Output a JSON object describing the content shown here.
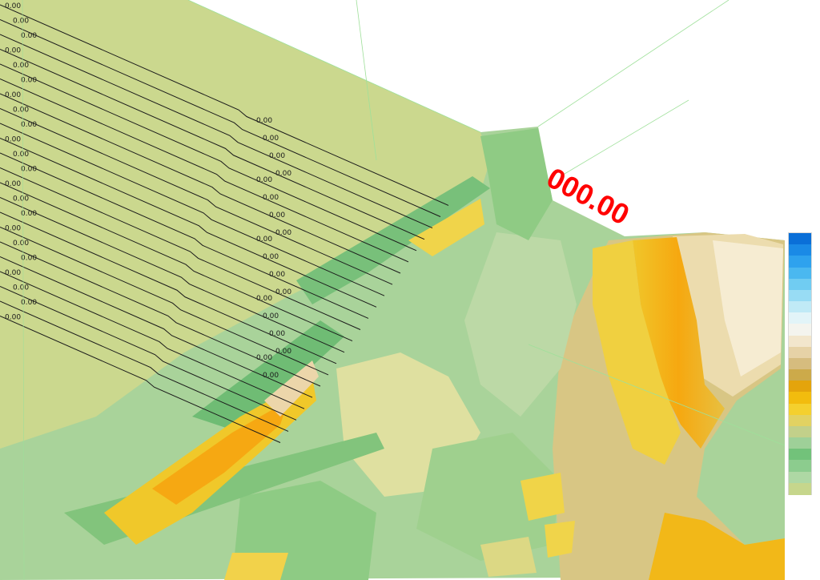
{
  "viewport": {
    "contour_label_text": "0.00",
    "elevation_label_text": "000.00"
  },
  "legend": {
    "colors": [
      "#0a6fd8",
      "#1a8ae6",
      "#2ea2ee",
      "#4ab8f0",
      "#70ccf2",
      "#98dcf4",
      "#c0eaf6",
      "#e2f4f8",
      "#f4f4ee",
      "#f2e6cc",
      "#e6d2a6",
      "#d6bc7e",
      "#ccaa4a",
      "#e4a40c",
      "#f2bc0e",
      "#f4d02e",
      "#e2d262",
      "#c2d08a",
      "#9ed098",
      "#72c27a",
      "#8ccc8e",
      "#aed8a4",
      "#c6d68c"
    ]
  }
}
